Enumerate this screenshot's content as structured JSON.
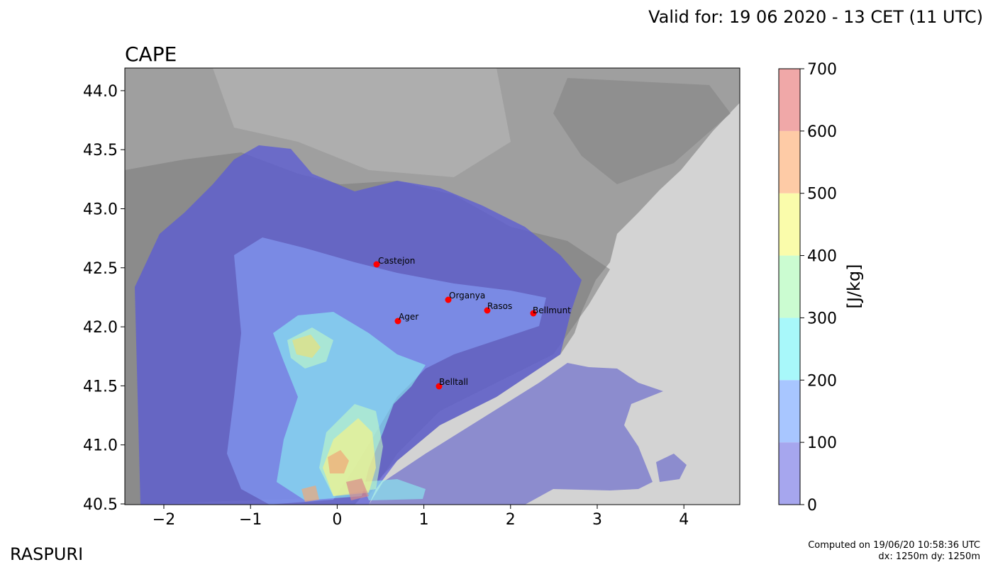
{
  "header": {
    "valid_text": "Valid for: 19 06 2020 - 13 CET (11 UTC)"
  },
  "map": {
    "title": "CAPE",
    "lon_ticks": [
      "−2",
      "−1",
      "0",
      "1",
      "2",
      "3",
      "4"
    ],
    "lat_ticks": [
      "40.5",
      "41.0",
      "41.5",
      "42.0",
      "42.5",
      "43.0",
      "43.5",
      "44.0"
    ],
    "places": [
      {
        "name": "Castejon"
      },
      {
        "name": "Organya"
      },
      {
        "name": "Rasos"
      },
      {
        "name": "Bellmunt"
      },
      {
        "name": "Ager"
      },
      {
        "name": "Belltall"
      }
    ]
  },
  "colorbar": {
    "label": "[J/kg]",
    "ticks": [
      "0",
      "100",
      "200",
      "300",
      "400",
      "500",
      "600",
      "700"
    ],
    "colors": [
      "#a6a6ee",
      "#a8c6ff",
      "#a8f8fa",
      "#cbfcd1",
      "#fafcab",
      "#fecba6",
      "#f0a8a8"
    ]
  },
  "footer": {
    "brand": "RASPURI",
    "computed": "Computed on 19/06/20 10:58:36 UTC",
    "resolution": "dx: 1250m dy: 1250m"
  }
}
